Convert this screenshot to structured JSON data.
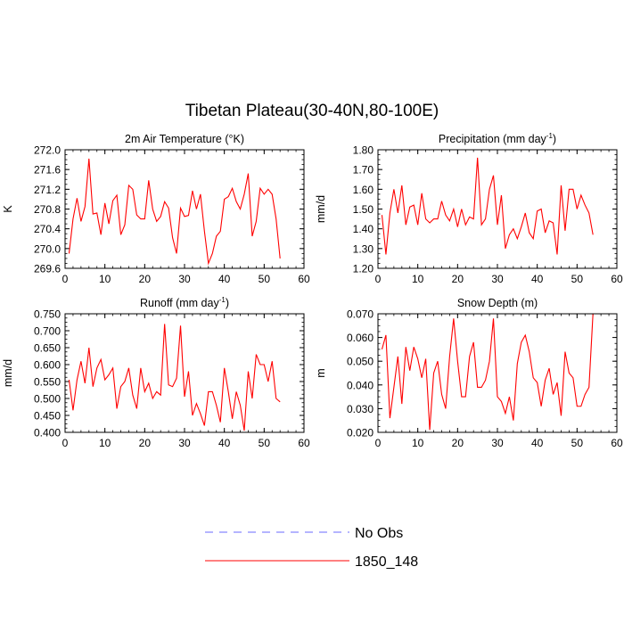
{
  "title": "Tibetan Plateau(30-40N,80-100E)",
  "legend": {
    "position": "bottom-center",
    "items": [
      {
        "label": "No Obs",
        "color": "#6a6aff",
        "dash": "dashed"
      },
      {
        "label": "1850_148",
        "color": "#ff0000",
        "dash": "solid"
      }
    ]
  },
  "chart_data": [
    {
      "type": "line",
      "title": "2m Air Temperature (°K)",
      "ylabel": "K",
      "xlim": [
        0,
        60
      ],
      "ylim": [
        269.6,
        272.0
      ],
      "xticks": [
        0,
        10,
        20,
        30,
        40,
        50,
        60
      ],
      "yticks": [
        269.6,
        270.0,
        270.4,
        270.8,
        271.2,
        271.6,
        272.0
      ],
      "ytick_labels": [
        "269.6",
        "270.0",
        "270.4",
        "270.8",
        "271.2",
        "271.6",
        "272.0"
      ],
      "series": [
        {
          "name": "1850_148",
          "color": "#ff0000",
          "x": [
            1,
            2,
            3,
            4,
            5,
            6,
            7,
            8,
            9,
            10,
            11,
            12,
            13,
            14,
            15,
            16,
            17,
            18,
            19,
            20,
            21,
            22,
            23,
            24,
            25,
            26,
            27,
            28,
            29,
            30,
            31,
            32,
            33,
            34,
            35,
            36,
            37,
            38,
            39,
            40,
            41,
            42,
            43,
            44,
            45,
            46,
            47,
            48,
            49,
            50,
            51,
            52,
            53,
            54
          ],
          "values": [
            269.9,
            270.6,
            271.02,
            270.55,
            270.85,
            271.82,
            270.7,
            270.72,
            270.28,
            270.92,
            270.5,
            270.97,
            271.08,
            270.28,
            270.48,
            271.28,
            271.2,
            270.68,
            270.6,
            270.6,
            271.38,
            270.8,
            270.55,
            270.65,
            270.95,
            270.82,
            270.22,
            269.9,
            270.82,
            270.65,
            270.67,
            271.17,
            270.8,
            271.1,
            270.35,
            269.7,
            269.9,
            270.25,
            270.35,
            271.0,
            271.05,
            271.22,
            270.95,
            270.8,
            271.1,
            271.52,
            270.25,
            270.55,
            271.22,
            271.1,
            271.2,
            271.1,
            270.6,
            269.8
          ]
        }
      ]
    },
    {
      "type": "line",
      "title": "Precipitation (mm day",
      "title_exp": "-1",
      "title_end": ")",
      "ylabel": "mm/d",
      "xlim": [
        0,
        60
      ],
      "ylim": [
        1.2,
        1.8
      ],
      "xticks": [
        0,
        10,
        20,
        30,
        40,
        50,
        60
      ],
      "yticks": [
        1.2,
        1.3,
        1.4,
        1.5,
        1.6,
        1.7,
        1.8
      ],
      "ytick_labels": [
        "1.20",
        "1.30",
        "1.40",
        "1.50",
        "1.60",
        "1.70",
        "1.80"
      ],
      "series": [
        {
          "name": "1850_148",
          "color": "#ff0000",
          "x": [
            1,
            2,
            3,
            4,
            5,
            6,
            7,
            8,
            9,
            10,
            11,
            12,
            13,
            14,
            15,
            16,
            17,
            18,
            19,
            20,
            21,
            22,
            23,
            24,
            25,
            26,
            27,
            28,
            29,
            30,
            31,
            32,
            33,
            34,
            35,
            36,
            37,
            38,
            39,
            40,
            41,
            42,
            43,
            44,
            45,
            46,
            47,
            48,
            49,
            50,
            51,
            52,
            53,
            54
          ],
          "values": [
            1.47,
            1.27,
            1.48,
            1.6,
            1.48,
            1.62,
            1.42,
            1.51,
            1.52,
            1.42,
            1.58,
            1.45,
            1.43,
            1.45,
            1.45,
            1.54,
            1.47,
            1.44,
            1.5,
            1.41,
            1.5,
            1.42,
            1.46,
            1.45,
            1.76,
            1.42,
            1.45,
            1.6,
            1.67,
            1.42,
            1.57,
            1.3,
            1.37,
            1.4,
            1.35,
            1.41,
            1.48,
            1.38,
            1.35,
            1.49,
            1.5,
            1.38,
            1.44,
            1.43,
            1.27,
            1.62,
            1.39,
            1.6,
            1.6,
            1.5,
            1.57,
            1.52,
            1.48,
            1.37
          ]
        }
      ]
    },
    {
      "type": "line",
      "title": "Runoff (mm day",
      "title_exp": "-1",
      "title_end": ")",
      "ylabel": "mm/d",
      "xlim": [
        0,
        60
      ],
      "ylim": [
        0.4,
        0.75
      ],
      "xticks": [
        0,
        10,
        20,
        30,
        40,
        50,
        60
      ],
      "yticks": [
        0.4,
        0.45,
        0.5,
        0.55,
        0.6,
        0.65,
        0.7,
        0.75
      ],
      "ytick_labels": [
        "0.400",
        "0.450",
        "0.500",
        "0.550",
        "0.600",
        "0.650",
        "0.700",
        "0.750"
      ],
      "series": [
        {
          "name": "1850_148",
          "color": "#ff0000",
          "x": [
            1,
            2,
            3,
            4,
            5,
            6,
            7,
            8,
            9,
            10,
            11,
            12,
            13,
            14,
            15,
            16,
            17,
            18,
            19,
            20,
            21,
            22,
            23,
            24,
            25,
            26,
            27,
            28,
            29,
            30,
            31,
            32,
            33,
            34,
            35,
            36,
            37,
            38,
            39,
            40,
            41,
            42,
            43,
            44,
            45,
            46,
            47,
            48,
            49,
            50,
            51,
            52,
            53,
            54
          ],
          "values": [
            0.555,
            0.465,
            0.555,
            0.61,
            0.545,
            0.65,
            0.535,
            0.59,
            0.615,
            0.555,
            0.57,
            0.59,
            0.47,
            0.535,
            0.55,
            0.59,
            0.51,
            0.47,
            0.59,
            0.52,
            0.545,
            0.5,
            0.52,
            0.51,
            0.72,
            0.54,
            0.535,
            0.56,
            0.715,
            0.505,
            0.58,
            0.45,
            0.485,
            0.455,
            0.42,
            0.52,
            0.52,
            0.48,
            0.43,
            0.59,
            0.52,
            0.44,
            0.52,
            0.48,
            0.405,
            0.58,
            0.5,
            0.63,
            0.6,
            0.6,
            0.55,
            0.61,
            0.5,
            0.49
          ]
        }
      ]
    },
    {
      "type": "line",
      "title": "Snow Depth (m)",
      "ylabel": "m",
      "xlim": [
        0,
        60
      ],
      "ylim": [
        0.02,
        0.07
      ],
      "xticks": [
        0,
        10,
        20,
        30,
        40,
        50,
        60
      ],
      "yticks": [
        0.02,
        0.03,
        0.04,
        0.05,
        0.06,
        0.07
      ],
      "ytick_labels": [
        "0.020",
        "0.030",
        "0.040",
        "0.050",
        "0.060",
        "0.070"
      ],
      "series": [
        {
          "name": "1850_148",
          "color": "#ff0000",
          "x": [
            1,
            2,
            3,
            4,
            5,
            6,
            7,
            8,
            9,
            10,
            11,
            12,
            13,
            14,
            15,
            16,
            17,
            18,
            19,
            20,
            21,
            22,
            23,
            24,
            25,
            26,
            27,
            28,
            29,
            30,
            31,
            32,
            33,
            34,
            35,
            36,
            37,
            38,
            39,
            40,
            41,
            42,
            43,
            44,
            45,
            46,
            47,
            48,
            49,
            50,
            51,
            52,
            53,
            54
          ],
          "values": [
            0.055,
            0.061,
            0.026,
            0.039,
            0.052,
            0.032,
            0.056,
            0.046,
            0.056,
            0.051,
            0.043,
            0.051,
            0.021,
            0.045,
            0.05,
            0.036,
            0.03,
            0.052,
            0.068,
            0.05,
            0.035,
            0.035,
            0.052,
            0.058,
            0.039,
            0.039,
            0.042,
            0.05,
            0.068,
            0.035,
            0.033,
            0.028,
            0.035,
            0.025,
            0.049,
            0.058,
            0.061,
            0.054,
            0.043,
            0.041,
            0.031,
            0.042,
            0.047,
            0.036,
            0.041,
            0.027,
            0.054,
            0.045,
            0.043,
            0.031,
            0.031,
            0.036,
            0.039,
            0.07
          ]
        }
      ]
    }
  ]
}
